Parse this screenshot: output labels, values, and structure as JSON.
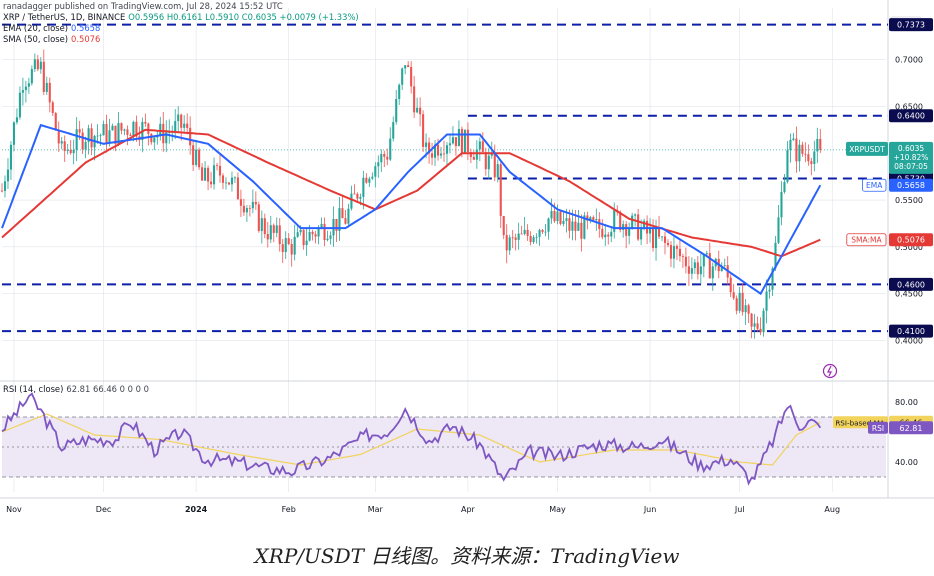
{
  "publisher_line": "ranadagger published on TradingView.com, Jul 28, 2024 15:52 UTC",
  "symbol_line": {
    "pair": "XRP / TetherUS, 1D, BINANCE",
    "ohlc": "O0.5956 H0.6161 L0.5910 C0.6035 +0.0079 (+1.33%)"
  },
  "ema_line": {
    "label": "EMA (20, close)",
    "value": "0.5658"
  },
  "sma_line": {
    "label": "SMA (50, close)",
    "value": "0.5076"
  },
  "rsi_line": {
    "label": "RSI (14, close)",
    "values": "62.81 66.46 0 0 0 0"
  },
  "currency_label": "USDT",
  "brand_text": "TradingView",
  "caption": "XRP/USDT 日线图。资料来源：TradingView",
  "colors": {
    "up": "#26a69a",
    "down": "#ef5350",
    "ema": "#2962ff",
    "sma": "#e53935",
    "hline": "#0d1fa8",
    "rsi": "#7e57c2",
    "rsi_ma": "#f2d35c",
    "rsi_band": "#ede7f6",
    "badge_dark": "#0b0b50",
    "grid": "#e0e3eb"
  },
  "chart_data": {
    "type": "candlestick",
    "x_range": [
      "2023-10-28",
      "2024-08-19"
    ],
    "x_axis_labels": [
      {
        "date": "2023-11-01",
        "label": "Nov"
      },
      {
        "date": "2023-12-01",
        "label": "Dec"
      },
      {
        "date": "2024-01-01",
        "label": "2024"
      },
      {
        "date": "2024-02-01",
        "label": "Feb"
      },
      {
        "date": "2024-03-01",
        "label": "Mar"
      },
      {
        "date": "2024-04-01",
        "label": "Apr"
      },
      {
        "date": "2024-05-01",
        "label": "May"
      },
      {
        "date": "2024-06-01",
        "label": "Jun"
      },
      {
        "date": "2024-07-01",
        "label": "Jul"
      },
      {
        "date": "2024-08-01",
        "label": "Aug"
      }
    ],
    "price_axis": {
      "ylim": [
        0.36,
        0.755
      ],
      "ticks": [
        {
          "value": 0.7,
          "label": "0.7000"
        },
        {
          "value": 0.65,
          "label": "0.6500"
        },
        {
          "value": 0.55,
          "label": "0.5500"
        },
        {
          "value": 0.5,
          "label": "0.5000"
        },
        {
          "value": 0.45,
          "label": "0.4500"
        },
        {
          "value": 0.4,
          "label": "0.4000"
        }
      ]
    },
    "horizontal_levels": [
      {
        "value": 0.7373,
        "label": "0.7373",
        "start": "2023-10-28"
      },
      {
        "value": 0.64,
        "label": "0.6400",
        "start": "2024-04-01"
      },
      {
        "value": 0.573,
        "label": "0.5730",
        "start": "2024-04-01"
      },
      {
        "value": 0.46,
        "label": "0.4600",
        "start": "2023-10-28"
      },
      {
        "value": 0.41,
        "label": "0.4100",
        "start": "2023-10-28"
      }
    ],
    "last_price_badge": {
      "value": 0.6035,
      "lines": [
        "XRPUSDT",
        "0.6035",
        "+10.82%",
        "08:07:05"
      ]
    },
    "ma_badges": [
      {
        "name": "EMA",
        "value": 0.5658,
        "label": "0.5658",
        "color_key": "ema"
      },
      {
        "name": "SMA:MA",
        "value": 0.5076,
        "label": "0.5076",
        "color_key": "sma"
      }
    ],
    "close_anchors": [
      {
        "date": "2023-10-28",
        "close": 0.56
      },
      {
        "date": "2023-11-04",
        "close": 0.68
      },
      {
        "date": "2023-11-10",
        "close": 0.69
      },
      {
        "date": "2023-11-17",
        "close": 0.6
      },
      {
        "date": "2023-11-25",
        "close": 0.62
      },
      {
        "date": "2023-12-04",
        "close": 0.62
      },
      {
        "date": "2023-12-11",
        "close": 0.63
      },
      {
        "date": "2023-12-20",
        "close": 0.62
      },
      {
        "date": "2023-12-28",
        "close": 0.63
      },
      {
        "date": "2024-01-03",
        "close": 0.57
      },
      {
        "date": "2024-01-10",
        "close": 0.58
      },
      {
        "date": "2024-01-17",
        "close": 0.55
      },
      {
        "date": "2024-01-24",
        "close": 0.52
      },
      {
        "date": "2024-02-01",
        "close": 0.5
      },
      {
        "date": "2024-02-12",
        "close": 0.52
      },
      {
        "date": "2024-02-20",
        "close": 0.53
      },
      {
        "date": "2024-02-27",
        "close": 0.58
      },
      {
        "date": "2024-03-05",
        "close": 0.6
      },
      {
        "date": "2024-03-11",
        "close": 0.7
      },
      {
        "date": "2024-03-18",
        "close": 0.6
      },
      {
        "date": "2024-03-27",
        "close": 0.62
      },
      {
        "date": "2024-04-05",
        "close": 0.6
      },
      {
        "date": "2024-04-11",
        "close": 0.58
      },
      {
        "date": "2024-04-13",
        "close": 0.5
      },
      {
        "date": "2024-04-20",
        "close": 0.51
      },
      {
        "date": "2024-04-28",
        "close": 0.53
      },
      {
        "date": "2024-05-06",
        "close": 0.52
      },
      {
        "date": "2024-05-15",
        "close": 0.52
      },
      {
        "date": "2024-05-21",
        "close": 0.53
      },
      {
        "date": "2024-05-28",
        "close": 0.52
      },
      {
        "date": "2024-06-07",
        "close": 0.5
      },
      {
        "date": "2024-06-15",
        "close": 0.48
      },
      {
        "date": "2024-06-25",
        "close": 0.48
      },
      {
        "date": "2024-07-05",
        "close": 0.41
      },
      {
        "date": "2024-07-08",
        "close": 0.42
      },
      {
        "date": "2024-07-13",
        "close": 0.5
      },
      {
        "date": "2024-07-17",
        "close": 0.61
      },
      {
        "date": "2024-07-21",
        "close": 0.6
      },
      {
        "date": "2024-07-28",
        "close": 0.6035
      }
    ],
    "ema_anchors": [
      {
        "date": "2023-10-28",
        "value": 0.52
      },
      {
        "date": "2023-11-10",
        "value": 0.63
      },
      {
        "date": "2023-12-01",
        "value": 0.61
      },
      {
        "date": "2023-12-22",
        "value": 0.62
      },
      {
        "date": "2024-01-05",
        "value": 0.61
      },
      {
        "date": "2024-01-20",
        "value": 0.57
      },
      {
        "date": "2024-02-05",
        "value": 0.52
      },
      {
        "date": "2024-02-20",
        "value": 0.52
      },
      {
        "date": "2024-03-01",
        "value": 0.54
      },
      {
        "date": "2024-03-12",
        "value": 0.58
      },
      {
        "date": "2024-03-25",
        "value": 0.62
      },
      {
        "date": "2024-04-05",
        "value": 0.62
      },
      {
        "date": "2024-04-15",
        "value": 0.58
      },
      {
        "date": "2024-05-01",
        "value": 0.54
      },
      {
        "date": "2024-05-20",
        "value": 0.52
      },
      {
        "date": "2024-06-05",
        "value": 0.52
      },
      {
        "date": "2024-06-20",
        "value": 0.49
      },
      {
        "date": "2024-07-08",
        "value": 0.45
      },
      {
        "date": "2024-07-15",
        "value": 0.49
      },
      {
        "date": "2024-07-28",
        "value": 0.5658
      }
    ],
    "sma_anchors": [
      {
        "date": "2023-10-28",
        "value": 0.51
      },
      {
        "date": "2023-11-25",
        "value": 0.59
      },
      {
        "date": "2023-12-15",
        "value": 0.625
      },
      {
        "date": "2024-01-05",
        "value": 0.62
      },
      {
        "date": "2024-01-25",
        "value": 0.59
      },
      {
        "date": "2024-02-15",
        "value": 0.56
      },
      {
        "date": "2024-03-01",
        "value": 0.54
      },
      {
        "date": "2024-03-15",
        "value": 0.56
      },
      {
        "date": "2024-03-30",
        "value": 0.6
      },
      {
        "date": "2024-04-15",
        "value": 0.6
      },
      {
        "date": "2024-05-05",
        "value": 0.57
      },
      {
        "date": "2024-05-25",
        "value": 0.53
      },
      {
        "date": "2024-06-15",
        "value": 0.51
      },
      {
        "date": "2024-07-05",
        "value": 0.5
      },
      {
        "date": "2024-07-15",
        "value": 0.49
      },
      {
        "date": "2024-07-28",
        "value": 0.5076
      }
    ],
    "rsi_panel": {
      "ylim": [
        20,
        92
      ],
      "ticks": [
        {
          "value": 80,
          "label": "80.00"
        },
        {
          "value": 40,
          "label": "40.00"
        }
      ],
      "band": [
        30,
        70
      ],
      "mid": 50,
      "rsi_label": "RSI",
      "rsi_value": 62.81,
      "rsi_value_label": "62.81",
      "ma_label": "RSI-based MA",
      "ma_value": 66.46,
      "ma_value_label": "66.46",
      "rsi_anchors": [
        {
          "date": "2023-10-28",
          "value": 62
        },
        {
          "date": "2023-11-04",
          "value": 78
        },
        {
          "date": "2023-11-06",
          "value": 84
        },
        {
          "date": "2023-11-10",
          "value": 74
        },
        {
          "date": "2023-11-17",
          "value": 50
        },
        {
          "date": "2023-11-25",
          "value": 55
        },
        {
          "date": "2023-12-05",
          "value": 55
        },
        {
          "date": "2023-12-10",
          "value": 67
        },
        {
          "date": "2023-12-18",
          "value": 48
        },
        {
          "date": "2023-12-27",
          "value": 60
        },
        {
          "date": "2024-01-04",
          "value": 42
        },
        {
          "date": "2024-01-15",
          "value": 40
        },
        {
          "date": "2024-01-24",
          "value": 36
        },
        {
          "date": "2024-02-02",
          "value": 34
        },
        {
          "date": "2024-02-15",
          "value": 43
        },
        {
          "date": "2024-02-27",
          "value": 58
        },
        {
          "date": "2024-03-05",
          "value": 60
        },
        {
          "date": "2024-03-11",
          "value": 76
        },
        {
          "date": "2024-03-19",
          "value": 54
        },
        {
          "date": "2024-03-27",
          "value": 64
        },
        {
          "date": "2024-04-05",
          "value": 52
        },
        {
          "date": "2024-04-13",
          "value": 28
        },
        {
          "date": "2024-04-22",
          "value": 47
        },
        {
          "date": "2024-05-01",
          "value": 44
        },
        {
          "date": "2024-05-15",
          "value": 52
        },
        {
          "date": "2024-05-28",
          "value": 50
        },
        {
          "date": "2024-06-05",
          "value": 55
        },
        {
          "date": "2024-06-18",
          "value": 38
        },
        {
          "date": "2024-06-28",
          "value": 42
        },
        {
          "date": "2024-07-05",
          "value": 28
        },
        {
          "date": "2024-07-08",
          "value": 38
        },
        {
          "date": "2024-07-13",
          "value": 58
        },
        {
          "date": "2024-07-17",
          "value": 78
        },
        {
          "date": "2024-07-21",
          "value": 65
        },
        {
          "date": "2024-07-25",
          "value": 67
        },
        {
          "date": "2024-07-28",
          "value": 62.81
        }
      ],
      "ma_anchors": [
        {
          "date": "2023-10-28",
          "value": 60
        },
        {
          "date": "2023-11-12",
          "value": 72
        },
        {
          "date": "2023-11-28",
          "value": 58
        },
        {
          "date": "2023-12-20",
          "value": 55
        },
        {
          "date": "2024-01-15",
          "value": 45
        },
        {
          "date": "2024-02-05",
          "value": 38
        },
        {
          "date": "2024-02-25",
          "value": 45
        },
        {
          "date": "2024-03-15",
          "value": 62
        },
        {
          "date": "2024-04-05",
          "value": 58
        },
        {
          "date": "2024-04-25",
          "value": 40
        },
        {
          "date": "2024-05-20",
          "value": 48
        },
        {
          "date": "2024-06-10",
          "value": 48
        },
        {
          "date": "2024-07-01",
          "value": 40
        },
        {
          "date": "2024-07-12",
          "value": 38
        },
        {
          "date": "2024-07-20",
          "value": 58
        },
        {
          "date": "2024-07-28",
          "value": 66.46
        }
      ]
    }
  }
}
